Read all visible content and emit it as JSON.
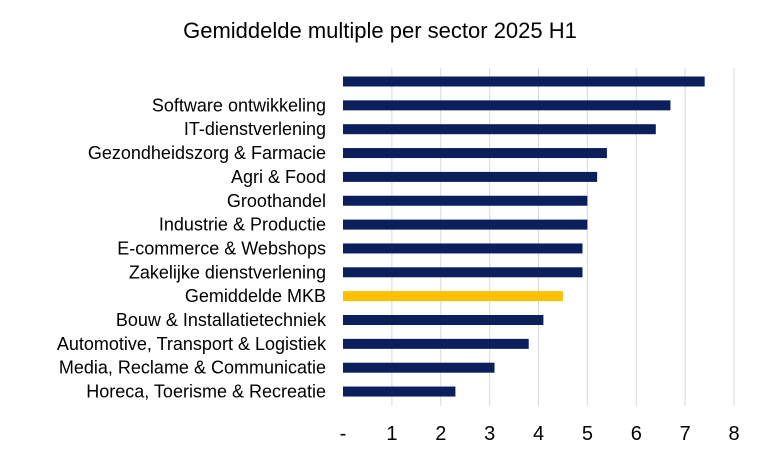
{
  "chart_data": {
    "type": "bar",
    "orientation": "horizontal",
    "title": "Gemiddelde multiple per sector 2025 H1",
    "xlabel": "",
    "ylabel": "",
    "xlim": [
      0,
      8
    ],
    "x_ticks": [
      "-",
      "1",
      "2",
      "3",
      "4",
      "5",
      "6",
      "7",
      "8"
    ],
    "grid": "vertical",
    "legend": "none",
    "colors": {
      "bar": "#0B1F5C",
      "highlight": "#FFC000",
      "grid": "#D9D9D9"
    },
    "categories": [
      "",
      "Software ontwikkeling",
      "IT-dienstverlening ",
      "Gezondheidszorg & Farmacie",
      "Agri & Food",
      "Groothandel",
      "Industrie & Productie",
      "E-commerce & Webshops",
      "Zakelijke dienstverlening",
      "Gemiddelde MKB",
      "Bouw & Installatietechniek",
      "Automotive, Transport & Logistiek",
      "Media, Reclame & Communicatie",
      "Horeca, Toerisme & Recreatie"
    ],
    "values": [
      7.4,
      6.7,
      6.4,
      5.4,
      5.2,
      5.0,
      5.0,
      4.9,
      4.9,
      4.5,
      4.1,
      3.8,
      3.1,
      2.3
    ],
    "highlight_category": "Gemiddelde MKB"
  }
}
